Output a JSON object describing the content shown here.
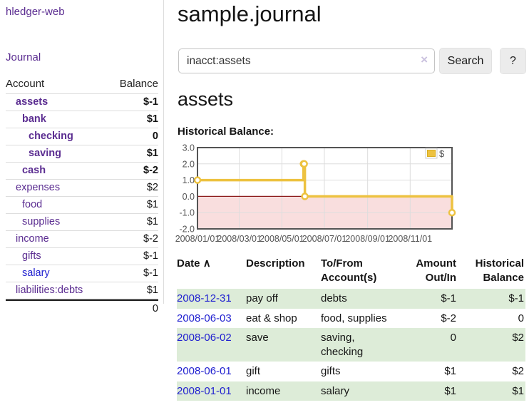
{
  "colors": {
    "link_purple": "#5b2d91",
    "link_blue": "#2121d0",
    "negative": "#9e2222",
    "negative_dim": "#c28080",
    "row_green": "#ddecd8",
    "chart_series": "#EDC240",
    "chart_negative_fill": "#f9dede",
    "chart_zero_line": "#8b1a1a",
    "chart_axis_text": "#545454",
    "chart_grid": "#dddddd",
    "chart_border": "#545454"
  },
  "sidebar": {
    "app_title": "hledger-web",
    "journal_link": "Journal",
    "accounts_table": {
      "headers": {
        "account": "Account",
        "balance": "Balance"
      },
      "rows": [
        {
          "name": "assets",
          "balance": "$-1",
          "indent": 1,
          "bold": true,
          "balance_style": "negative",
          "link_style": "purple"
        },
        {
          "name": "bank",
          "balance": "$1",
          "indent": 2,
          "bold": true,
          "balance_style": "normal",
          "link_style": "purple"
        },
        {
          "name": "checking",
          "balance": "0",
          "indent": 3,
          "bold": true,
          "balance_style": "normal",
          "link_style": "purple"
        },
        {
          "name": "saving",
          "balance": "$1",
          "indent": 3,
          "bold": true,
          "balance_style": "normal",
          "link_style": "purple"
        },
        {
          "name": "cash",
          "balance": "$-2",
          "indent": 2,
          "bold": true,
          "balance_style": "negative",
          "link_style": "purple"
        },
        {
          "name": "expenses",
          "balance": "$2",
          "indent": 1,
          "bold": false,
          "balance_style": "normal",
          "link_style": "purple"
        },
        {
          "name": "food",
          "balance": "$1",
          "indent": 2,
          "bold": false,
          "balance_style": "normal",
          "link_style": "purple"
        },
        {
          "name": "supplies",
          "balance": "$1",
          "indent": 2,
          "bold": false,
          "balance_style": "normal",
          "link_style": "purple"
        },
        {
          "name": "income",
          "balance": "$-2",
          "indent": 1,
          "bold": false,
          "balance_style": "negative_dim",
          "link_style": "purple"
        },
        {
          "name": "gifts",
          "balance": "$-1",
          "indent": 2,
          "bold": false,
          "balance_style": "negative_dim",
          "link_style": "purple"
        },
        {
          "name": "salary",
          "balance": "$-1",
          "indent": 2,
          "bold": false,
          "balance_style": "negative_dim",
          "link_style": "blue"
        },
        {
          "name": "liabilities:debts",
          "balance": "$1",
          "indent": 1,
          "bold": false,
          "balance_style": "normal",
          "link_style": "purple"
        }
      ],
      "total": "0"
    }
  },
  "main": {
    "title": "sample.journal",
    "search": {
      "value": "inacct:assets",
      "clear_icon": "×",
      "button_label": "Search",
      "help_label": "?"
    },
    "account_heading": "assets",
    "chart_title": "Historical Balance:",
    "register_table": {
      "headers": {
        "date": "Date",
        "sort_indicator": "∧",
        "description": "Description",
        "accounts": "To/From Account(s)",
        "amount": "Amount Out/In",
        "balance": "Historical Balance"
      },
      "rows": [
        {
          "date": "2008-12-31",
          "description": "pay off",
          "accounts": "debts",
          "amount": "$-1",
          "amount_style": "negative",
          "balance": "$-1",
          "balance_style": "negative"
        },
        {
          "date": "2008-06-03",
          "description": "eat & shop",
          "accounts": "food, supplies",
          "amount": "$-2",
          "amount_style": "negative",
          "balance": "0",
          "balance_style": "normal"
        },
        {
          "date": "2008-06-02",
          "description": "save",
          "accounts": "saving, checking",
          "amount": "0",
          "amount_style": "normal",
          "balance": "$2",
          "balance_style": "normal"
        },
        {
          "date": "2008-06-01",
          "description": "gift",
          "accounts": "gifts",
          "amount": "$1",
          "amount_style": "normal",
          "balance": "$2",
          "balance_style": "normal"
        },
        {
          "date": "2008-01-01",
          "description": "income",
          "accounts": "salary",
          "amount": "$1",
          "amount_style": "normal",
          "balance": "$1",
          "balance_style": "normal"
        }
      ]
    }
  },
  "chart_data": {
    "type": "line",
    "steps": true,
    "title": "Historical Balance:",
    "series": [
      {
        "name": "$",
        "color": "#EDC240",
        "points": [
          [
            "2008-01-01",
            1
          ],
          [
            "2008-06-01",
            2
          ],
          [
            "2008-06-02",
            2
          ],
          [
            "2008-06-03",
            0
          ],
          [
            "2008-12-31",
            -1
          ]
        ]
      }
    ],
    "x_range": [
      "2008-01-01",
      "2008-12-31"
    ],
    "ylim": [
      -2,
      3
    ],
    "x_ticks": [
      {
        "label": "2008/01/01",
        "date": "2008-01-01"
      },
      {
        "label": "2008/03/01",
        "date": "2008-03-01"
      },
      {
        "label": "2008/05/01",
        "date": "2008-05-01"
      },
      {
        "label": "2008/07/01",
        "date": "2008-07-01"
      },
      {
        "label": "2008/09/01",
        "date": "2008-09-01"
      },
      {
        "label": "2008/11/01",
        "date": "2008-11-01"
      }
    ],
    "y_ticks": [
      {
        "label": "3.0",
        "value": 3
      },
      {
        "label": "2.0",
        "value": 2
      },
      {
        "label": "1.0",
        "value": 1
      },
      {
        "label": "0.0",
        "value": 0
      },
      {
        "label": "-1.0",
        "value": -1
      },
      {
        "label": "-2.0",
        "value": -2
      }
    ],
    "grid": true,
    "legend": {
      "label": "$",
      "position": "top-right"
    },
    "negative_region": {
      "from": 0,
      "to": -2,
      "fill": "#f9dede"
    },
    "zero_line_color": "#8b1a1a"
  }
}
